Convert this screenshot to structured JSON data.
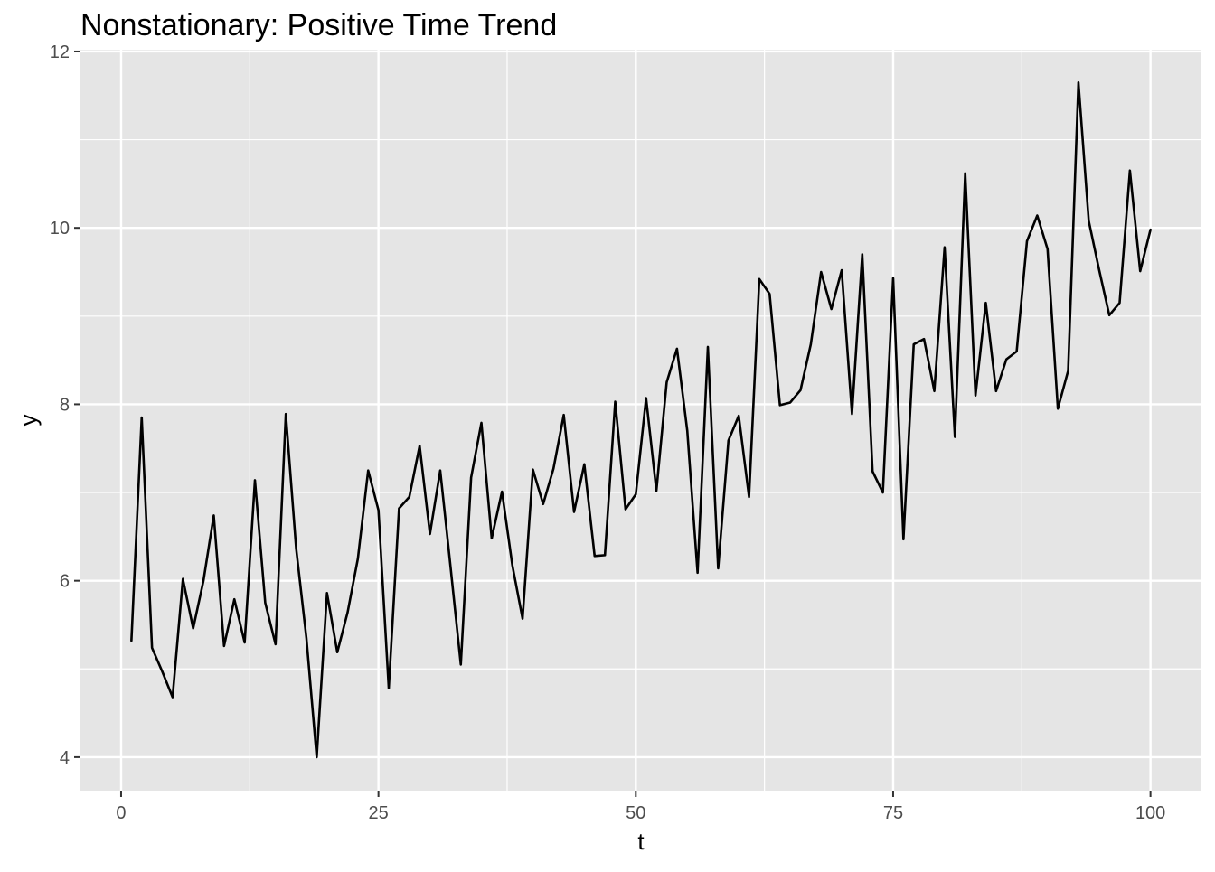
{
  "chart_data": {
    "type": "line",
    "title": "Nonstationary: Positive Time Trend",
    "xlabel": "t",
    "ylabel": "y",
    "xlim": [
      -3.95,
      104.95
    ],
    "ylim": [
      3.62,
      12.02
    ],
    "x_ticks": [
      0,
      25,
      50,
      75,
      100
    ],
    "x_tick_labels": [
      "0",
      "25",
      "50",
      "75",
      "100"
    ],
    "y_ticks": [
      4,
      6,
      8,
      10,
      12
    ],
    "y_tick_labels": [
      "4",
      "6",
      "8",
      "10",
      "12"
    ],
    "x_minor": [
      12.5,
      37.5,
      62.5,
      87.5
    ],
    "y_minor": [
      5,
      7,
      9,
      11
    ],
    "grid": true,
    "legend": "none",
    "colors": {
      "panel_bg": "#e5e5e5",
      "line": "#000000",
      "grid": "#ffffff"
    },
    "series": [
      {
        "x": [
          1,
          2,
          3,
          4,
          5,
          6,
          7,
          8,
          9,
          10,
          11,
          12,
          13,
          14,
          15,
          16,
          17,
          18,
          19,
          20,
          21,
          22,
          23,
          24,
          25,
          26,
          27,
          28,
          29,
          30,
          31,
          32,
          33,
          34,
          35,
          36,
          37,
          38,
          39,
          40,
          41,
          42,
          43,
          44,
          45,
          46,
          47,
          48,
          49,
          50,
          51,
          52,
          53,
          54,
          55,
          56,
          57,
          58,
          59,
          60,
          61,
          62,
          63,
          64,
          65,
          66,
          67,
          68,
          69,
          70,
          71,
          72,
          73,
          74,
          75,
          76,
          77,
          78,
          79,
          80,
          81,
          82,
          83,
          84,
          85,
          86,
          87,
          88,
          89,
          90,
          91,
          92,
          93,
          94,
          95,
          96,
          97,
          98,
          99,
          100
        ],
        "values": [
          5.32,
          7.85,
          5.24,
          4.97,
          4.68,
          6.02,
          5.46,
          6.0,
          6.74,
          5.26,
          5.79,
          5.3,
          7.14,
          5.75,
          5.28,
          7.89,
          6.37,
          5.35,
          4.0,
          5.86,
          5.19,
          5.64,
          6.25,
          7.25,
          6.8,
          4.78,
          6.82,
          6.95,
          7.53,
          6.53,
          7.25,
          6.16,
          5.05,
          7.17,
          7.79,
          6.48,
          7.01,
          6.18,
          5.57,
          7.26,
          6.87,
          7.27,
          7.88,
          6.78,
          7.32,
          6.28,
          6.29,
          8.03,
          6.81,
          6.98,
          8.07,
          7.02,
          8.25,
          8.63,
          7.7,
          6.09,
          8.65,
          6.14,
          7.59,
          7.87,
          6.95,
          9.42,
          9.25,
          7.99,
          8.02,
          8.16,
          8.68,
          9.5,
          9.08,
          9.52,
          7.89,
          9.7,
          7.24,
          7.0,
          9.43,
          6.47,
          8.68,
          8.74,
          8.15,
          9.78,
          7.63,
          10.62,
          8.1,
          9.15,
          8.15,
          8.51,
          8.6,
          9.85,
          10.14,
          9.76,
          7.95,
          8.38,
          11.65,
          10.08,
          9.53,
          9.01,
          9.15,
          10.65,
          9.51,
          9.98
        ]
      }
    ]
  }
}
